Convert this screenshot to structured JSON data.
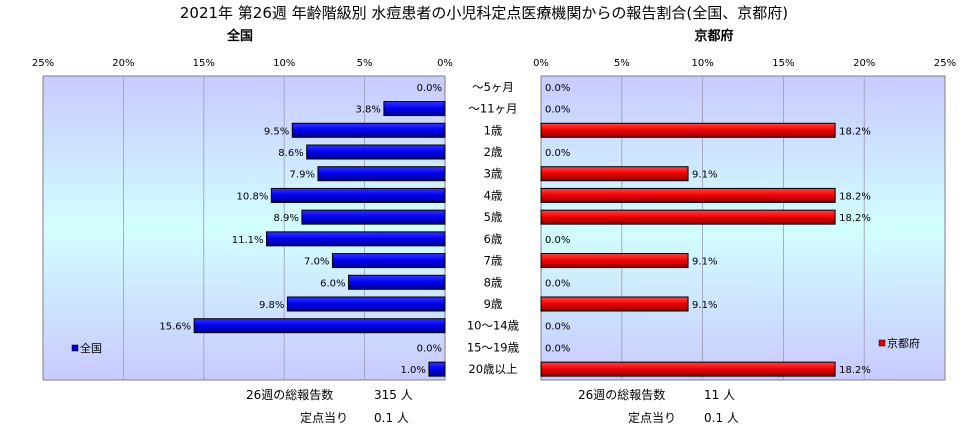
{
  "title": "2021年 第26週 年齢階級別 水痘患者の小児科定点医療機関からの報告割合(全国、京都府)",
  "chart_data": [
    {
      "type": "bar",
      "orientation": "horizontal",
      "title": "全国",
      "direction": "right-to-left",
      "xlim": [
        0,
        25
      ],
      "ticks": [
        "0%",
        "5%",
        "10%",
        "15%",
        "20%",
        "25%"
      ],
      "categories": [
        "〜5ヶ月",
        "〜11ヶ月",
        "1歳",
        "2歳",
        "3歳",
        "4歳",
        "5歳",
        "6歳",
        "7歳",
        "8歳",
        "9歳",
        "10〜14歳",
        "15〜19歳",
        "20歳以上"
      ],
      "series": [
        {
          "name": "全国",
          "values": [
            0.0,
            3.8,
            9.5,
            8.6,
            7.9,
            10.8,
            8.9,
            11.1,
            7.0,
            6.0,
            9.8,
            15.6,
            0.0,
            1.0
          ],
          "labels": [
            "0.0%",
            "3.8%",
            "9.5%",
            "8.6%",
            "7.9%",
            "10.8%",
            "8.9%",
            "11.1%",
            "7.0%",
            "6.0%",
            "9.8%",
            "15.6%",
            "0.0%",
            "1.0%"
          ],
          "color": "#0000cc"
        }
      ],
      "legend": "bottom-left",
      "footer": {
        "total_label": "26週の総報告数",
        "total_value": "315 人",
        "per_label": "定点当り",
        "per_value": "0.1 人"
      }
    },
    {
      "type": "bar",
      "orientation": "horizontal",
      "title": "京都府",
      "direction": "left-to-right",
      "xlim": [
        0,
        25
      ],
      "ticks": [
        "0%",
        "5%",
        "10%",
        "15%",
        "20%",
        "25%"
      ],
      "categories": [
        "〜5ヶ月",
        "〜11ヶ月",
        "1歳",
        "2歳",
        "3歳",
        "4歳",
        "5歳",
        "6歳",
        "7歳",
        "8歳",
        "9歳",
        "10〜14歳",
        "15〜19歳",
        "20歳以上"
      ],
      "series": [
        {
          "name": "京都府",
          "values": [
            0.0,
            0.0,
            18.2,
            0.0,
            9.1,
            18.2,
            18.2,
            0.0,
            9.1,
            0.0,
            9.1,
            0.0,
            0.0,
            18.2
          ],
          "labels": [
            "0.0%",
            "0.0%",
            "18.2%",
            "0.0%",
            "9.1%",
            "18.2%",
            "18.2%",
            "0.0%",
            "9.1%",
            "0.0%",
            "9.1%",
            "0.0%",
            "0.0%",
            "18.2%"
          ],
          "color": "#dd0000"
        }
      ],
      "legend": "bottom-right",
      "footer": {
        "total_label": "26週の総報告数",
        "total_value": "11 人",
        "per_label": "定点当り",
        "per_value": "0.1 人"
      }
    }
  ]
}
